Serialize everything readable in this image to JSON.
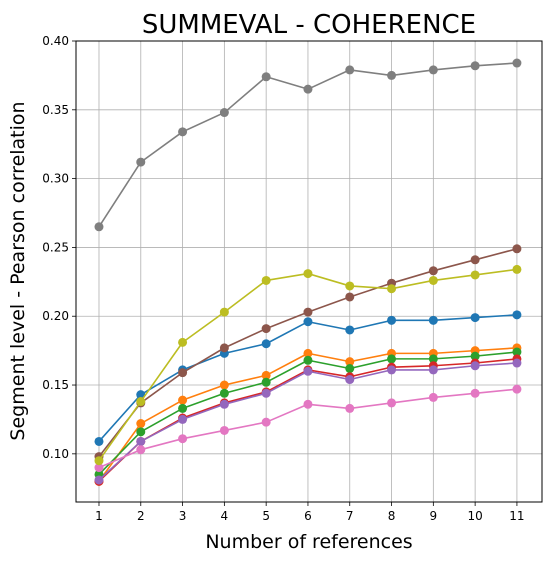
{
  "chart_data": {
    "type": "line",
    "title": "SUMMEVAL - COHERENCE",
    "xlabel": "Number of references",
    "ylabel": "Segment level - Pearson correlation",
    "x": [
      1,
      2,
      3,
      4,
      5,
      6,
      7,
      8,
      9,
      10,
      11
    ],
    "xlim": [
      0.45,
      11.6
    ],
    "ylim": [
      0.065,
      0.4
    ],
    "xticks": [
      "1",
      "2",
      "3",
      "4",
      "5",
      "6",
      "7",
      "8",
      "9",
      "10",
      "11"
    ],
    "yticks": [
      "0.10",
      "0.15",
      "0.20",
      "0.25",
      "0.30",
      "0.35",
      "0.40"
    ],
    "grid": true,
    "series": [
      {
        "color": "#1f77b4",
        "values": [
          0.109,
          0.143,
          0.161,
          0.173,
          0.18,
          0.196,
          0.19,
          0.197,
          0.197,
          0.199,
          0.201
        ]
      },
      {
        "color": "#ff7f0e",
        "values": [
          0.08,
          0.122,
          0.139,
          0.15,
          0.157,
          0.173,
          0.167,
          0.173,
          0.173,
          0.175,
          0.177
        ]
      },
      {
        "color": "#2ca02c",
        "values": [
          0.085,
          0.116,
          0.133,
          0.144,
          0.152,
          0.168,
          0.162,
          0.169,
          0.169,
          0.171,
          0.174
        ]
      },
      {
        "color": "#d62728",
        "values": [
          0.08,
          0.109,
          0.126,
          0.137,
          0.145,
          0.161,
          0.156,
          0.163,
          0.164,
          0.166,
          0.169
        ]
      },
      {
        "color": "#9467bd",
        "values": [
          0.081,
          0.109,
          0.125,
          0.136,
          0.144,
          0.16,
          0.154,
          0.161,
          0.161,
          0.164,
          0.166
        ]
      },
      {
        "color": "#8c564b",
        "values": [
          0.098,
          0.137,
          0.159,
          0.177,
          0.191,
          0.203,
          0.214,
          0.224,
          0.233,
          0.241,
          0.249
        ]
      },
      {
        "color": "#e377c2",
        "values": [
          0.09,
          0.103,
          0.111,
          0.117,
          0.123,
          0.136,
          0.133,
          0.137,
          0.141,
          0.144,
          0.147
        ]
      },
      {
        "color": "#7f7f7f",
        "values": [
          0.265,
          0.312,
          0.334,
          0.348,
          0.374,
          0.365,
          0.379,
          0.375,
          0.379,
          0.382,
          0.384
        ]
      },
      {
        "color": "#bcbd22",
        "values": [
          0.095,
          0.138,
          0.181,
          0.203,
          0.226,
          0.231,
          0.222,
          0.22,
          0.226,
          0.23,
          0.234
        ]
      }
    ]
  }
}
